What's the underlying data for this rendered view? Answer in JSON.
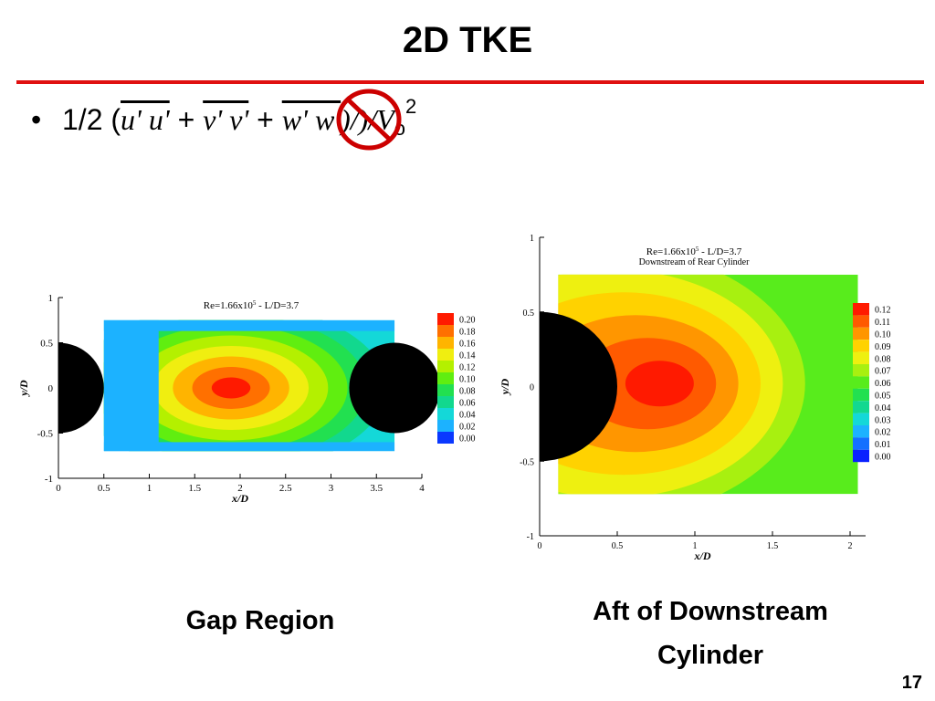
{
  "slide": {
    "title": "2D TKE",
    "bullet_prefix": "1/2 (",
    "terms": [
      "u' u'",
      "v' v'",
      "w' w'"
    ],
    "plus": "+",
    "closing": ")/)/",
    "vo": "V",
    "vo_sub": "o",
    "vo_sup": "2",
    "page_number": "17",
    "colors": {
      "rule": "#e01010",
      "ban": "#cc0000"
    }
  },
  "chart_data": [
    {
      "type": "heatmap",
      "caption": "Gap Region",
      "title": "Re=1.66x10",
      "title_exp": "5",
      "title_tail": " - L/D=3.7",
      "xlabel": "x/D",
      "ylabel": "y/D",
      "xlim": [
        0,
        4
      ],
      "ylim": [
        -1,
        1
      ],
      "xticks": [
        "0",
        "0.5",
        "1",
        "1.5",
        "2",
        "2.5",
        "3",
        "3.5",
        "4"
      ],
      "yticks": [
        "-1",
        "-0.5",
        "0",
        "0.5",
        "1"
      ],
      "legend_levels": [
        "0.20",
        "0.18",
        "0.16",
        "0.14",
        "0.12",
        "0.10",
        "0.08",
        "0.06",
        "0.04",
        "0.02",
        "0.00"
      ],
      "legend_colors": [
        "#ff1a00",
        "#ff7000",
        "#ffb400",
        "#f0ee10",
        "#b4f000",
        "#60ee10",
        "#22e050",
        "#12d88e",
        "#14d8d8",
        "#1cb2ff",
        "#0a38ff"
      ],
      "legend_position": "right",
      "cylinders": [
        {
          "cx": 0,
          "cy": 0,
          "r": 0.5
        },
        {
          "cx": 3.7,
          "cy": 0,
          "r": 0.5
        }
      ],
      "measurement_window": {
        "x": [
          0.5,
          3.7
        ],
        "y": [
          -0.7,
          0.75
        ]
      },
      "peak": {
        "x": 1.9,
        "y": 0.0,
        "value": 0.2
      }
    },
    {
      "type": "heatmap",
      "caption": "Aft of Downstream Cylinder",
      "title": "Re=1.66x10",
      "title_exp": "5",
      "title_tail": " - L/D=3.7",
      "subtitle": "Downstream of Rear Cylinder",
      "xlabel": "x/D",
      "ylabel": "y/D",
      "xlim": [
        0,
        2.1
      ],
      "ylim": [
        -1,
        1
      ],
      "xticks": [
        "0",
        "0.5",
        "1",
        "1.5",
        "2"
      ],
      "yticks": [
        "-1",
        "-0.5",
        "0",
        "0.5",
        "1"
      ],
      "legend_levels": [
        "0.12",
        "0.11",
        "0.10",
        "0.09",
        "0.08",
        "0.07",
        "0.06",
        "0.05",
        "0.04",
        "0.03",
        "0.02",
        "0.01",
        "0.00"
      ],
      "legend_colors": [
        "#ff1a00",
        "#ff5a00",
        "#ff9600",
        "#ffd200",
        "#eef010",
        "#a8f010",
        "#58ec1c",
        "#22e050",
        "#12d890",
        "#14d8d8",
        "#1cb2ff",
        "#1470ff",
        "#0a20ff"
      ],
      "legend_position": "right",
      "cylinders": [
        {
          "cx": 0,
          "cy": 0,
          "r": 0.5
        }
      ],
      "measurement_window": {
        "x": [
          0.12,
          2.05
        ],
        "y": [
          -0.72,
          0.75
        ]
      },
      "peak": {
        "x": 0.85,
        "y": 0.02,
        "value": 0.12
      }
    }
  ]
}
